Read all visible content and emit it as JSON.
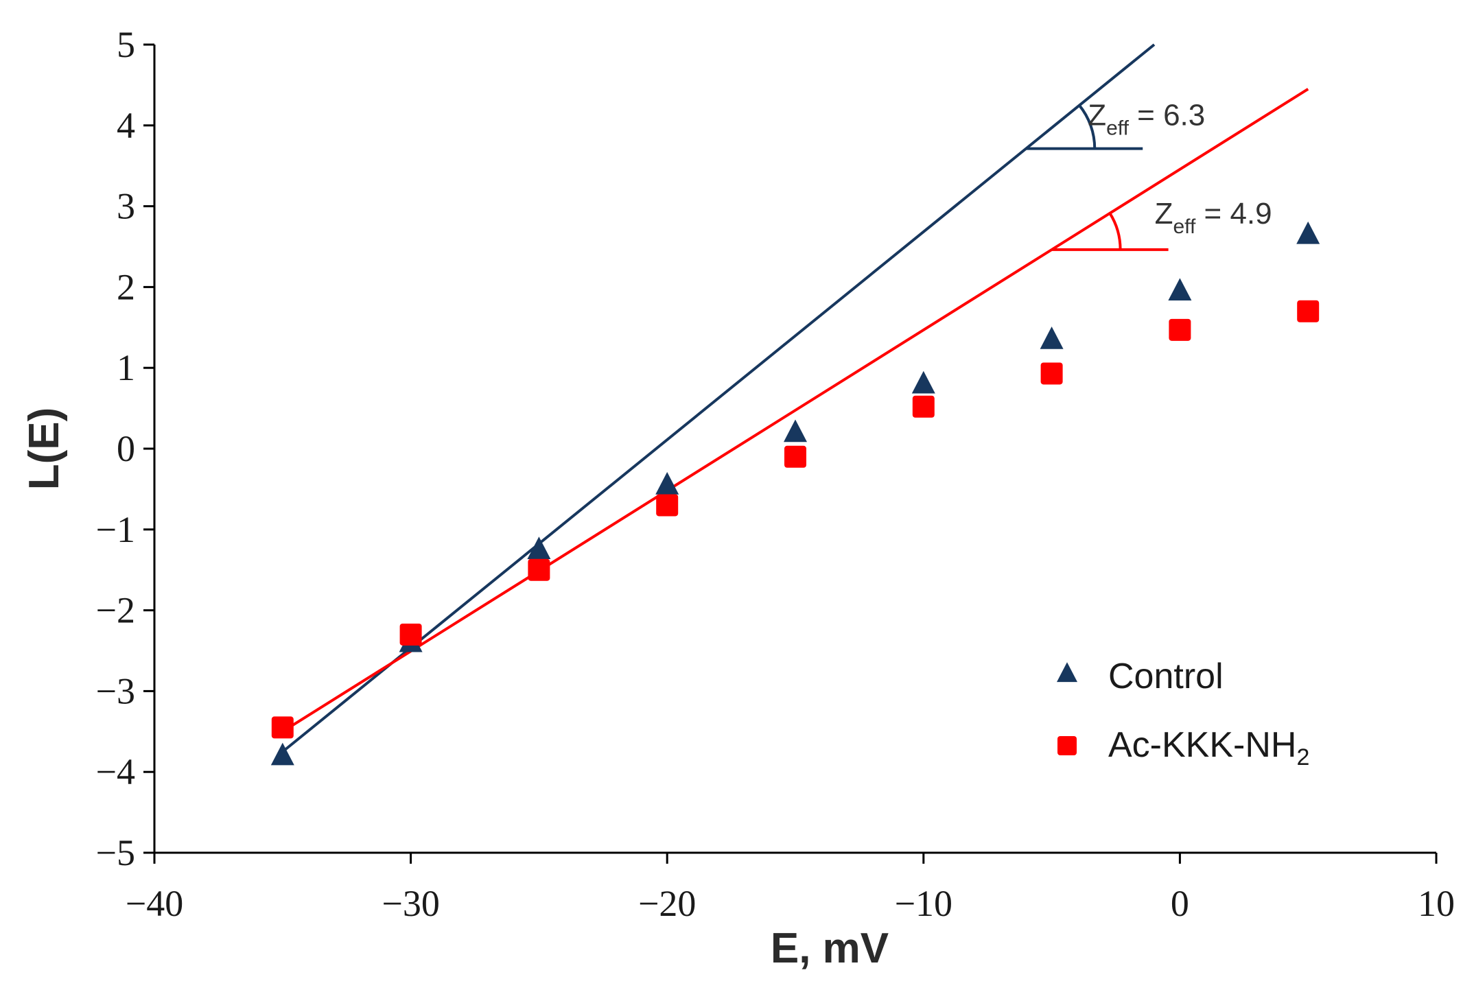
{
  "chart_data": {
    "type": "scatter",
    "xlabel": "E, mV",
    "ylabel": "L(E)",
    "xlim": [
      -40,
      10
    ],
    "ylim": [
      -5,
      5
    ],
    "xticks": [
      -40,
      -30,
      -20,
      -10,
      0,
      10
    ],
    "yticks": [
      -5,
      -4,
      -3,
      -2,
      -1,
      0,
      1,
      2,
      3,
      4,
      5
    ],
    "x_tick_labels": [
      "−40",
      "−30",
      "−20",
      "−10",
      "0",
      "10"
    ],
    "y_tick_labels": [
      "−5",
      "−4",
      "−3",
      "−2",
      "−1",
      "0",
      "1",
      "2",
      "3",
      "4",
      "5"
    ],
    "grid": false,
    "legend_position": "bottom-right",
    "series": [
      {
        "name": "Control",
        "label_main": "Control",
        "marker": "triangle",
        "color": "#17375e",
        "x": [
          -35,
          -30,
          -25,
          -20,
          -15,
          -10,
          -5,
          0,
          5
        ],
        "y": [
          -3.8,
          -2.4,
          -1.25,
          -0.45,
          0.2,
          0.8,
          1.35,
          1.95,
          2.65
        ]
      },
      {
        "name": "Ac-KKK-NH2",
        "label_main": "Ac-KKK-NH",
        "label_sub": "2",
        "marker": "square",
        "color": "#ff0000",
        "x": [
          -35,
          -30,
          -25,
          -20,
          -15,
          -10,
          -5,
          0,
          5
        ],
        "y": [
          -3.45,
          -2.3,
          -1.5,
          -0.7,
          -0.1,
          0.52,
          0.93,
          1.47,
          1.7
        ]
      }
    ],
    "fit_lines": [
      {
        "series": "Control",
        "color": "#17375e",
        "x": [
          -35,
          -1
        ],
        "y": [
          -3.75,
          5.0
        ],
        "annotation": {
          "main": "Z",
          "sub": "eff",
          "value": " = 6.3",
          "angle_at": [
            -6,
            3.6
          ]
        }
      },
      {
        "series": "Ac-KKK-NH2",
        "color": "#ff0000",
        "x": [
          -35,
          5
        ],
        "y": [
          -3.5,
          4.45
        ],
        "annotation": {
          "main": "Z",
          "sub": "eff",
          "value": " = 4.9",
          "angle_at": [
            -5,
            2.5
          ]
        }
      }
    ]
  }
}
